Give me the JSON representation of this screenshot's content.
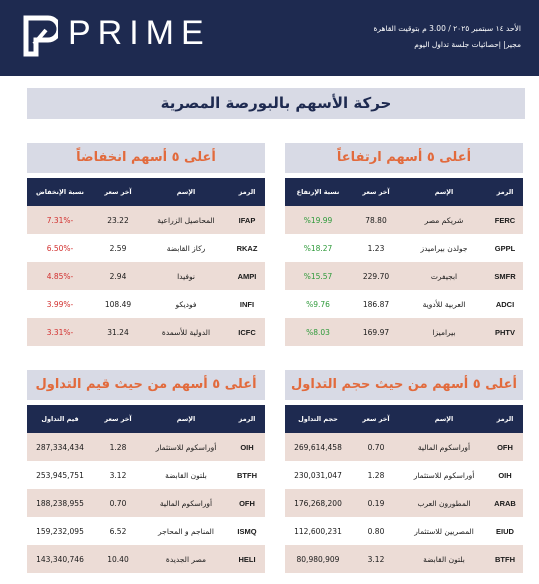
{
  "header": {
    "logo": "PRIME",
    "date": "الأحد ١٤ سبتمبر ٢٠٢٥ / 3.00 م بتوقيت القاهرة",
    "subtitle": "مجير| إحصائيات جلسة تداول اليوم"
  },
  "title": "حركة الأسهم بالبورصة المصرية",
  "tables": [
    {
      "title": "أعلى ٥ أسهم ارتفاعاً",
      "value_color": "#2e9a3a",
      "columns": [
        "الرمز",
        "الإسم",
        "آخر سعر",
        "نسبة الإرتفاع"
      ],
      "rows": [
        [
          "FERC",
          "شريكم مصر",
          "78.80",
          "%19.99"
        ],
        [
          "GPPL",
          "جولدن بيراميدز",
          "1.23",
          "%18.27"
        ],
        [
          "SMFR",
          "ابجيفرت",
          "229.70",
          "%15.57"
        ],
        [
          "ADCI",
          "العربية للأدوية",
          "186.87",
          "%9.76"
        ],
        [
          "PHTV",
          "بيراميزا",
          "169.97",
          "%8.03"
        ]
      ]
    },
    {
      "title": "أعلى ٥ أسهم انخفاضاً",
      "value_color": "#d2302f",
      "columns": [
        "الرمز",
        "الإسم",
        "آخر سعر",
        "نسبة الإنخفاض"
      ],
      "rows": [
        [
          "IFAP",
          "المحاصيل الزراعية",
          "23.22",
          "-7.31%"
        ],
        [
          "RKAZ",
          "ركاز القابضة",
          "2.59",
          "-6.50%"
        ],
        [
          "AMPI",
          "نوفيدا",
          "2.94",
          "-4.85%"
        ],
        [
          "INFI",
          "فوديكو",
          "108.49",
          "-3.99%"
        ],
        [
          "ICFC",
          "الدولية للأسمدة",
          "31.24",
          "-3.31%"
        ]
      ]
    },
    {
      "title": "أعلى ٥ أسهم من حيث حجم التداول",
      "value_color": "#1a1a1a",
      "columns": [
        "الرمز",
        "الإسم",
        "آخر سعر",
        "حجم التداول"
      ],
      "rows": [
        [
          "OFH",
          "أوراسكوم المالية",
          "0.70",
          "269,614,458"
        ],
        [
          "OIH",
          "أوراسكوم للاستثمار",
          "1.28",
          "230,031,047"
        ],
        [
          "ARAB",
          "المطورون العرب",
          "0.19",
          "176,268,200"
        ],
        [
          "EIUD",
          "المصريين للاستثمار",
          "0.80",
          "112,600,231"
        ],
        [
          "BTFH",
          "بلتون القابضة",
          "3.12",
          "80,980,909"
        ]
      ]
    },
    {
      "title": "أعلى ٥ أسهم من حيث قيم التداول",
      "value_color": "#1a1a1a",
      "columns": [
        "الرمز",
        "الإسم",
        "آخر سعر",
        "قيم التداول"
      ],
      "rows": [
        [
          "OIH",
          "أوراسكوم للاستثمار",
          "1.28",
          "287,334,434"
        ],
        [
          "BTFH",
          "بلتون القابضة",
          "3.12",
          "253,945,751"
        ],
        [
          "OFH",
          "أوراسكوم المالية",
          "0.70",
          "188,238,955"
        ],
        [
          "ISMQ",
          "المناجم و المحاجر",
          "6.52",
          "159,232,095"
        ],
        [
          "HELI",
          "مصر الجديدة",
          "10.40",
          "143,340,746"
        ]
      ]
    }
  ]
}
